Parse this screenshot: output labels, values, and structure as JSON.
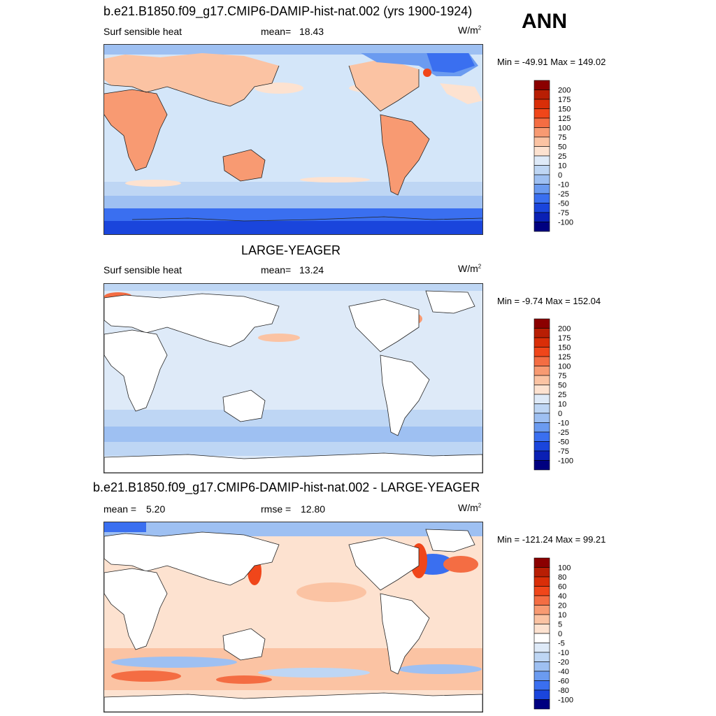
{
  "season": "ANN",
  "panels": [
    {
      "id": "model",
      "title": "b.e21.B1850.f09_g17.CMIP6-DAMIP-hist-nat.002 (yrs 1900-1924)",
      "variable": "Surf sensible heat",
      "mean_label": "mean=",
      "mean_value": "18.43",
      "rmse_label": "",
      "rmse_value": "",
      "units_base": "W/m",
      "units_exp": "2",
      "minmax": "Min = -49.91 Max = 149.02",
      "levels": [
        "200",
        "175",
        "150",
        "125",
        "100",
        "75",
        "50",
        "25",
        "10",
        "0",
        "-10",
        "-25",
        "-50",
        "-75",
        "-100"
      ],
      "colors": [
        "#8b0000",
        "#b81e04",
        "#d92e08",
        "#f0461a",
        "#f46d43",
        "#f89a72",
        "#fbc3a3",
        "#fde2d0",
        "#deeaf8",
        "#bed6f4",
        "#9ec0f2",
        "#6b9bf0",
        "#3a6ff0",
        "#1a45dc",
        "#0a20b4",
        "#000080"
      ]
    },
    {
      "id": "obs",
      "title": "LARGE-YEAGER",
      "variable": "Surf sensible heat",
      "mean_label": "mean=",
      "mean_value": "13.24",
      "rmse_label": "",
      "rmse_value": "",
      "units_base": "W/m",
      "units_exp": "2",
      "minmax": "Min =  -9.74 Max = 152.04",
      "levels": [
        "200",
        "175",
        "150",
        "125",
        "100",
        "75",
        "50",
        "25",
        "10",
        "0",
        "-10",
        "-25",
        "-50",
        "-75",
        "-100"
      ],
      "colors": [
        "#8b0000",
        "#b81e04",
        "#d92e08",
        "#f0461a",
        "#f46d43",
        "#f89a72",
        "#fbc3a3",
        "#fde2d0",
        "#deeaf8",
        "#bed6f4",
        "#9ec0f2",
        "#6b9bf0",
        "#3a6ff0",
        "#1a45dc",
        "#0a20b4",
        "#000080"
      ]
    },
    {
      "id": "diff",
      "title": "b.e21.B1850.f09_g17.CMIP6-DAMIP-hist-nat.002 - LARGE-YEAGER",
      "variable": "",
      "mean_label": "mean =",
      "mean_value": "5.20",
      "rmse_label": "rmse =",
      "rmse_value": "12.80",
      "units_base": "W/m",
      "units_exp": "2",
      "minmax": "Min = -121.24 Max =  99.21",
      "levels": [
        "100",
        "80",
        "60",
        "40",
        "20",
        "10",
        "5",
        "0",
        "-5",
        "-10",
        "-20",
        "-40",
        "-60",
        "-80",
        "-100"
      ],
      "colors": [
        "#8b0000",
        "#b81e04",
        "#d92e08",
        "#f0461a",
        "#f46d43",
        "#f89a72",
        "#fbc3a3",
        "#fde2d0",
        "#ffffff",
        "#deeaf8",
        "#bed6f4",
        "#9ec0f2",
        "#6b9bf0",
        "#3a6ff0",
        "#1a45dc",
        "#000080"
      ]
    }
  ]
}
